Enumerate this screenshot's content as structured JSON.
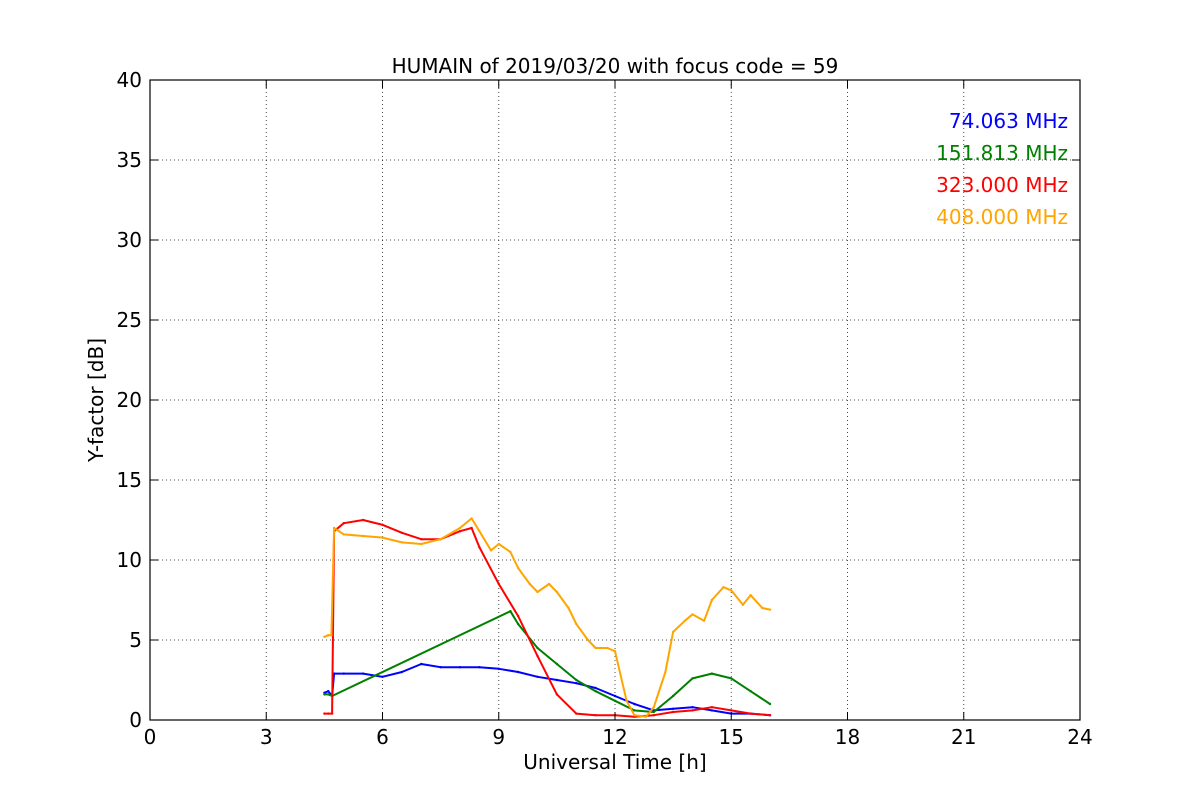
{
  "chart_data": {
    "type": "line",
    "title": "HUMAIN of 2019/03/20 with focus code = 59",
    "xlabel": "Universal Time [h]",
    "ylabel": "Y-factor [dB]",
    "xlim": [
      0,
      24
    ],
    "ylim": [
      0,
      40
    ],
    "xticks": [
      0,
      3,
      6,
      9,
      12,
      15,
      18,
      21,
      24
    ],
    "yticks": [
      0,
      5,
      10,
      15,
      20,
      25,
      30,
      35,
      40
    ],
    "grid": true,
    "legend_position": "top-right",
    "series": [
      {
        "name": "74.063 MHz",
        "color": "#0000ff",
        "x": [
          4.5,
          4.6,
          4.7,
          4.75,
          5.0,
          5.5,
          6.0,
          6.5,
          7.0,
          7.5,
          8.0,
          8.5,
          9.0,
          9.5,
          10.0,
          10.5,
          11.0,
          11.5,
          12.0,
          12.5,
          13.0,
          13.5,
          14.0,
          14.5,
          15.0,
          15.5,
          16.0
        ],
        "y": [
          1.7,
          1.8,
          1.5,
          2.9,
          2.9,
          2.9,
          2.7,
          3.0,
          3.5,
          3.3,
          3.3,
          3.3,
          3.2,
          3.0,
          2.7,
          2.5,
          2.3,
          2.0,
          1.5,
          1.0,
          0.6,
          0.7,
          0.8,
          0.6,
          0.4,
          0.4,
          0.3
        ]
      },
      {
        "name": "151.813 MHz",
        "color": "#008000",
        "x": [
          4.5,
          4.6,
          4.7,
          9.3,
          9.5,
          10.0,
          10.5,
          11.0,
          11.5,
          12.0,
          12.5,
          13.0,
          13.5,
          14.0,
          14.5,
          15.0,
          15.5,
          16.0
        ],
        "y": [
          1.6,
          1.6,
          1.5,
          6.8,
          6.0,
          4.5,
          3.5,
          2.5,
          1.8,
          1.2,
          0.6,
          0.5,
          1.5,
          2.6,
          2.9,
          2.6,
          1.8,
          1.0
        ]
      },
      {
        "name": "323.000 MHz",
        "color": "#ff0000",
        "x": [
          4.5,
          4.6,
          4.7,
          4.75,
          5.0,
          5.5,
          6.0,
          6.5,
          7.0,
          7.5,
          8.0,
          8.3,
          8.5,
          9.0,
          9.5,
          10.0,
          10.5,
          11.0,
          11.5,
          12.0,
          12.5,
          13.0,
          13.5,
          14.0,
          14.5,
          15.0,
          15.5,
          16.0
        ],
        "y": [
          0.4,
          0.4,
          0.4,
          11.8,
          12.3,
          12.5,
          12.2,
          11.7,
          11.3,
          11.3,
          11.8,
          12.0,
          10.8,
          8.5,
          6.5,
          4.0,
          1.6,
          0.4,
          0.3,
          0.3,
          0.2,
          0.3,
          0.5,
          0.6,
          0.8,
          0.6,
          0.4,
          0.3
        ]
      },
      {
        "name": "408.000 MHz",
        "color": "#ffa500",
        "x": [
          4.5,
          4.6,
          4.68,
          4.75,
          5.0,
          5.5,
          6.0,
          6.5,
          7.0,
          7.5,
          8.0,
          8.3,
          8.5,
          8.8,
          9.0,
          9.3,
          9.5,
          9.8,
          10.0,
          10.3,
          10.5,
          10.8,
          11.0,
          11.3,
          11.5,
          11.8,
          12.0,
          12.3,
          12.5,
          12.8,
          13.0,
          13.3,
          13.5,
          13.8,
          14.0,
          14.3,
          14.5,
          14.8,
          15.0,
          15.3,
          15.5,
          15.8,
          16.0
        ],
        "y": [
          5.2,
          5.3,
          5.3,
          12.0,
          11.6,
          11.5,
          11.4,
          11.1,
          11.0,
          11.3,
          12.0,
          12.6,
          11.8,
          10.6,
          11.0,
          10.5,
          9.5,
          8.5,
          8.0,
          8.5,
          8.0,
          7.0,
          6.0,
          5.0,
          4.5,
          4.5,
          4.3,
          1.2,
          0.3,
          0.2,
          0.8,
          3.0,
          5.5,
          6.2,
          6.6,
          6.2,
          7.5,
          8.3,
          8.1,
          7.2,
          7.8,
          7.0,
          6.9
        ]
      }
    ]
  }
}
